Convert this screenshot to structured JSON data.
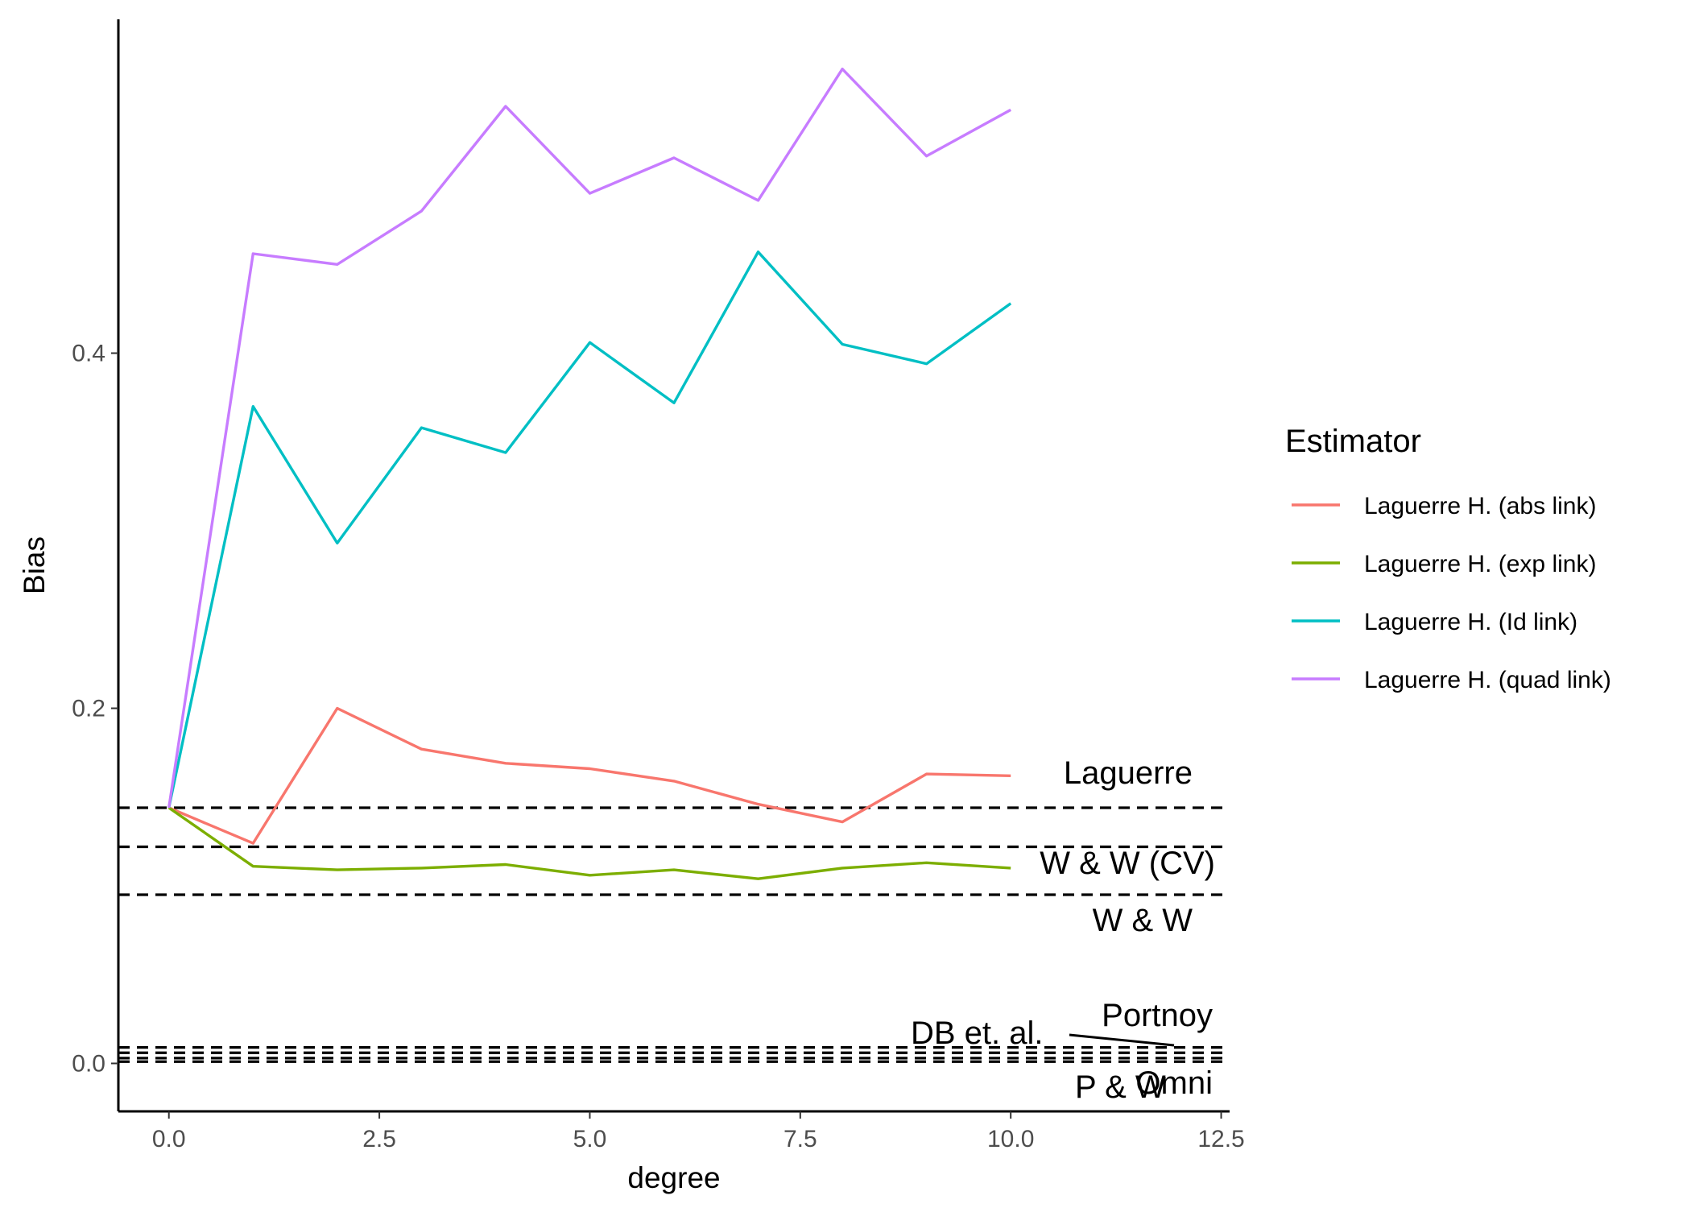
{
  "chart_data": {
    "type": "line",
    "xlabel": "degree",
    "ylabel": "Bias",
    "xlim": [
      -0.6,
      12.6
    ],
    "ylim": [
      -0.027,
      0.588
    ],
    "x_ticks": [
      {
        "value": 0.0,
        "label": "0.0"
      },
      {
        "value": 2.5,
        "label": "2.5"
      },
      {
        "value": 5.0,
        "label": "5.0"
      },
      {
        "value": 7.5,
        "label": "7.5"
      },
      {
        "value": 10.0,
        "label": "10.0"
      },
      {
        "value": 12.5,
        "label": "12.5"
      }
    ],
    "y_ticks": [
      {
        "value": 0.0,
        "label": "0.0"
      },
      {
        "value": 0.2,
        "label": "0.2"
      },
      {
        "value": 0.4,
        "label": "0.4"
      }
    ],
    "grid": false,
    "legend": {
      "title": "Estimator",
      "position": "right"
    },
    "x": [
      0,
      1,
      2,
      3,
      4,
      5,
      6,
      7,
      8,
      9,
      10
    ],
    "series": [
      {
        "name": "Laguerre H. (abs link)",
        "color": "#F8766D",
        "values": [
          0.144,
          0.124,
          0.2,
          0.177,
          0.169,
          0.166,
          0.159,
          0.146,
          0.136,
          0.163,
          0.162
        ]
      },
      {
        "name": "Laguerre H. (exp link)",
        "color": "#7CAE00",
        "values": [
          0.144,
          0.111,
          0.109,
          0.11,
          0.112,
          0.106,
          0.109,
          0.104,
          0.11,
          0.113,
          0.11
        ]
      },
      {
        "name": "Laguerre H. (Id link)",
        "color": "#00BFC4",
        "values": [
          0.144,
          0.37,
          0.293,
          0.358,
          0.344,
          0.406,
          0.372,
          0.457,
          0.405,
          0.394,
          0.428
        ]
      },
      {
        "name": "Laguerre H. (quad link)",
        "color": "#C77CFF",
        "values": [
          0.144,
          0.456,
          0.45,
          0.48,
          0.539,
          0.49,
          0.51,
          0.486,
          0.56,
          0.511,
          0.537
        ]
      }
    ],
    "reference_lines": [
      {
        "label": "Laguerre",
        "y": 0.144
      },
      {
        "label": "W & W (CV)",
        "y": 0.122
      },
      {
        "label": "W & W",
        "y": 0.095
      },
      {
        "label": "Portnoy",
        "y": 0.009
      },
      {
        "label": "DB et. al.",
        "y": 0.006
      },
      {
        "label": "Omni",
        "y": 0.003
      },
      {
        "label": "P & W",
        "y": 0.001
      }
    ]
  }
}
